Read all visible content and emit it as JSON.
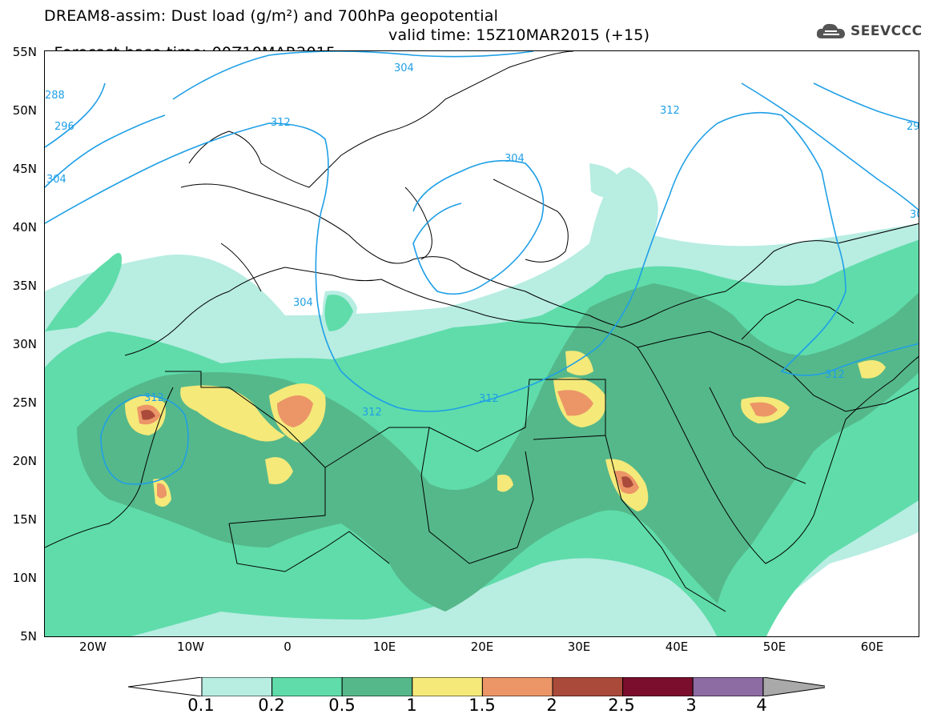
{
  "header": {
    "title_line1": "DREAM8-assim: Dust load (g/m²) and 700hPa geopotential",
    "title_line2_base": "Forecast base time: 00Z10MAR2015",
    "title_line2_valid": "valid time: 15Z10MAR2015 (+15)"
  },
  "logo": {
    "text": "SEEVCCC",
    "icon": "cloud-icon"
  },
  "axes": {
    "lat_labels": [
      "55N",
      "50N",
      "45N",
      "40N",
      "35N",
      "30N",
      "25N",
      "20N",
      "15N",
      "10N",
      "5N"
    ],
    "lon_labels": [
      "20W",
      "10W",
      "0",
      "10E",
      "20E",
      "30E",
      "40E",
      "50E",
      "60E"
    ]
  },
  "contours": {
    "labels": [
      "288",
      "296",
      "304",
      "312",
      "304",
      "312",
      "304",
      "312",
      "312",
      "312",
      "312",
      "29",
      "30"
    ]
  },
  "legend": {
    "ticks": [
      "0.1",
      "0.2",
      "0.5",
      "1",
      "1.5",
      "2",
      "2.5",
      "3",
      "4"
    ],
    "colors": [
      "#b8ede2",
      "#5fdcaa",
      "#55b88a",
      "#f5e97a",
      "#ec9567",
      "#a94a3a",
      "#7a0e2c",
      "#8d6ba3",
      "#a9a9a9"
    ],
    "under_color": "#ffffff"
  },
  "map": {
    "colors": {
      "level1": "#b8ede2",
      "level2": "#5fdcaa",
      "level3": "#55b88a",
      "level4": "#f5e97a",
      "level5": "#ec9567",
      "level6": "#a94a3a",
      "contour": "#1f9fe6",
      "border": "#000000"
    }
  }
}
